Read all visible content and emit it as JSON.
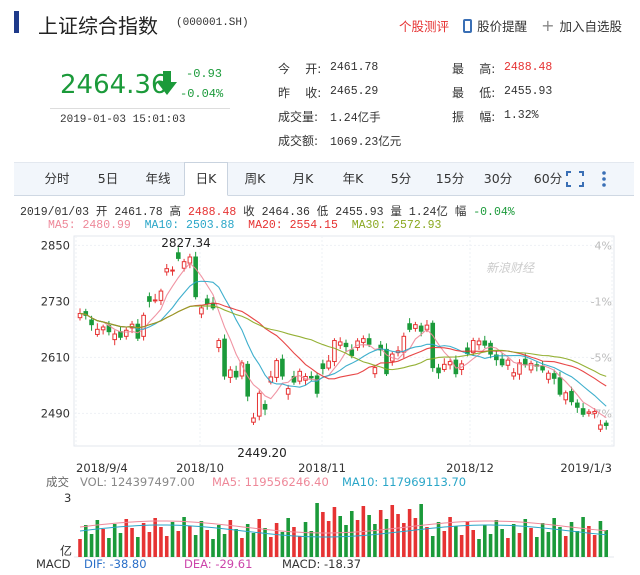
{
  "header": {
    "title": "上证综合指数",
    "code": "(000001.SH)",
    "actions": {
      "stock_review": "个股测评",
      "price_alert": "股价提醒",
      "add_watchlist": "加入自选股"
    }
  },
  "quote": {
    "price": "2464.36",
    "change": "-0.93",
    "change_pct": "-0.04%",
    "timestamp": "2019-01-03 15:01:03",
    "fields": [
      {
        "label": "今    开:",
        "value": "2461.78",
        "color": "#333333"
      },
      {
        "label": "最    高:",
        "value": "2488.48",
        "color": "#e63333"
      },
      {
        "label": "昨    收:",
        "value": "2465.29",
        "color": "#333333"
      },
      {
        "label": "最    低:",
        "value": "2455.93",
        "color": "#333333"
      },
      {
        "label": "成交量:",
        "value": "1.24亿手",
        "color": "#333333"
      },
      {
        "label": "振    幅:",
        "value": "1.32%",
        "color": "#333333"
      },
      {
        "label": "成交额:",
        "value": "1069.23亿元",
        "color": "#333333"
      }
    ]
  },
  "tabs": [
    "分时",
    "5日",
    "年线",
    "日K",
    "周K",
    "月K",
    "年K",
    "5分",
    "15分",
    "30分",
    "60分"
  ],
  "active_tab": "日K",
  "ohlc_line": {
    "date": "2019/01/03",
    "open_label": "开",
    "open": "2461.78",
    "high_label": "高",
    "high": "2488.48",
    "close_label": "收",
    "close": "2464.36",
    "low_label": "低",
    "low": "2455.93",
    "vol_label": "量",
    "vol": "1.24亿",
    "amp_label": "幅",
    "amp": "-0.04%"
  },
  "ma_line": {
    "ma5": "MA5: 2480.99",
    "ma10": "MA10: 2503.88",
    "ma20": "MA20: 2554.15",
    "ma30": "MA30: 2572.93"
  },
  "chart_data": {
    "type": "candlestick",
    "y_ticks": [
      "2850",
      "2730",
      "2610",
      "2490"
    ],
    "pct_ticks": [
      "4%",
      "-1%",
      "-5%",
      "-7%"
    ],
    "x_ticks": [
      "2018/9/4",
      "2018/10",
      "2018/11",
      "2018/12",
      "2019/1/3"
    ],
    "annotations": {
      "high": "2827.34",
      "low": "2449.20"
    },
    "watermark": "新浪财经",
    "ylim": [
      2420,
      2870
    ],
    "closes": [
      2704,
      2700,
      2680,
      2670,
      2675,
      2665,
      2660,
      2653,
      2668,
      2681,
      2651,
      2700,
      2730,
      2733,
      2752,
      2800,
      2797,
      2822,
      2815,
      2825,
      2740,
      2716,
      2725,
      2716,
      2646,
      2570,
      2583,
      2568,
      2598,
      2527,
      2480,
      2533,
      2499,
      2568,
      2603,
      2570,
      2543,
      2557,
      2580,
      2569,
      2566,
      2533,
      2586,
      2602,
      2646,
      2643,
      2633,
      2614,
      2645,
      2650,
      2638,
      2588,
      2626,
      2575,
      2617,
      2624,
      2655,
      2670,
      2680,
      2666,
      2679,
      2588,
      2577,
      2595,
      2601,
      2575,
      2596,
      2618,
      2646,
      2645,
      2636,
      2617,
      2605,
      2594,
      2604,
      2577,
      2598,
      2594,
      2597,
      2591,
      2583,
      2576,
      2565,
      2531,
      2534,
      2515,
      2503,
      2488,
      2493,
      2494,
      2465,
      2464
    ],
    "volume": {
      "label": "成交",
      "vol": "VOL: 124397497.00",
      "ma5": "MA5: 119556246.40",
      "ma10": "MA10: 117969113.70",
      "axis_top": "3",
      "axis_bottom": "亿"
    },
    "macd": {
      "label": "MACD",
      "dif": "DIF: -38.80",
      "dea": "DEA: -29.61",
      "macd": "MACD: -18.37"
    }
  }
}
